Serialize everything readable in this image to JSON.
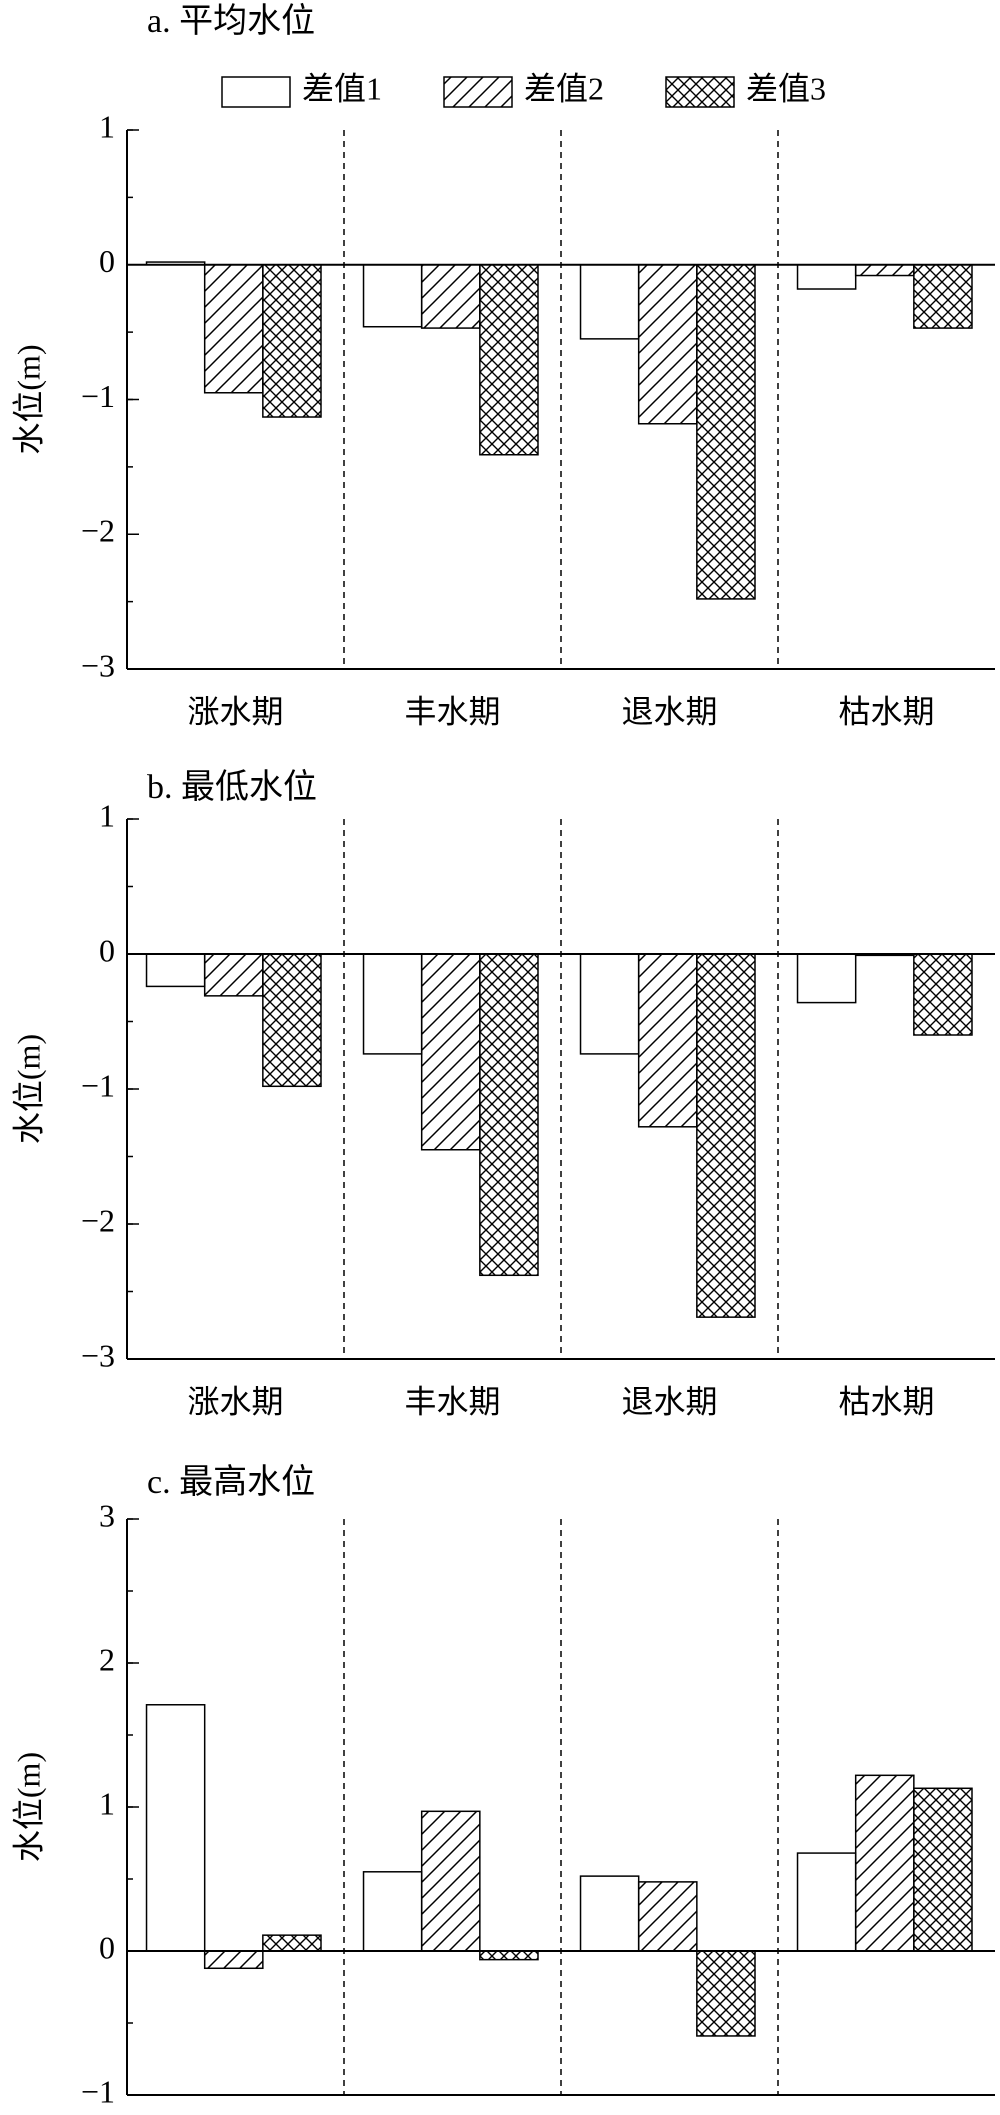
{
  "chart_data": [
    {
      "type": "bar",
      "title": "a. 平均水位",
      "ylabel": "水位(m)",
      "categories": [
        "涨水期",
        "丰水期",
        "退水期",
        "枯水期"
      ],
      "series": [
        {
          "name": "差值1",
          "color": "#ffffff",
          "hatch": "none",
          "values": [
            0.02,
            -0.46,
            -0.55,
            -0.18
          ]
        },
        {
          "name": "差值2",
          "color": "#ffffff",
          "hatch": "diagonal",
          "values": [
            -0.95,
            -0.47,
            -1.18,
            -0.08
          ]
        },
        {
          "name": "差值3",
          "color": "#ffffff",
          "hatch": "cross",
          "values": [
            -1.13,
            -1.41,
            -2.48,
            -0.47
          ]
        }
      ],
      "ylim": [
        -3,
        1
      ],
      "yticks": [
        {
          "value": -3,
          "label": "−3"
        },
        {
          "value": -2,
          "label": "−2"
        },
        {
          "value": -1,
          "label": "−1"
        },
        0,
        1
      ],
      "legend": "top",
      "separators": true
    },
    {
      "type": "bar",
      "title": "b. 最低水位",
      "ylabel": "水位(m)",
      "categories": [
        "涨水期",
        "丰水期",
        "退水期",
        "枯水期"
      ],
      "series": [
        {
          "color": "#ffffff",
          "hatch": "none",
          "values": [
            -0.24,
            -0.74,
            -0.74,
            -0.36
          ]
        },
        {
          "color": "#ffffff",
          "hatch": "diagonal",
          "values": [
            -0.31,
            -1.45,
            -1.28,
            -0.01
          ]
        },
        {
          "color": "#ffffff",
          "hatch": "cross",
          "values": [
            -0.98,
            -2.38,
            -2.69,
            -0.6
          ]
        }
      ],
      "ylim": [
        -3,
        1
      ],
      "yticks": [
        {
          "value": -3,
          "label": "−3"
        },
        {
          "value": -2,
          "label": "−2"
        },
        {
          "value": -1,
          "label": "−1"
        },
        0,
        1
      ],
      "separators": true
    },
    {
      "type": "bar",
      "title": "c. 最高水位",
      "ylabel": "水位(m)",
      "categories": [
        "涨水期",
        "丰水期",
        "退水期",
        "枯水期"
      ],
      "series": [
        {
          "color": "#ffffff",
          "hatch": "none",
          "values": [
            1.71,
            0.55,
            0.52,
            0.68
          ]
        },
        {
          "color": "#ffffff",
          "hatch": "diagonal",
          "values": [
            -0.12,
            0.97,
            0.48,
            1.22
          ]
        },
        {
          "color": "#ffffff",
          "hatch": "cross",
          "values": [
            0.11,
            -0.06,
            -0.59,
            1.13
          ]
        }
      ],
      "ylim": [
        -1,
        3
      ],
      "yticks": [
        {
          "value": -1,
          "label": "−1"
        },
        0,
        1,
        2,
        3
      ],
      "separators": true
    }
  ]
}
